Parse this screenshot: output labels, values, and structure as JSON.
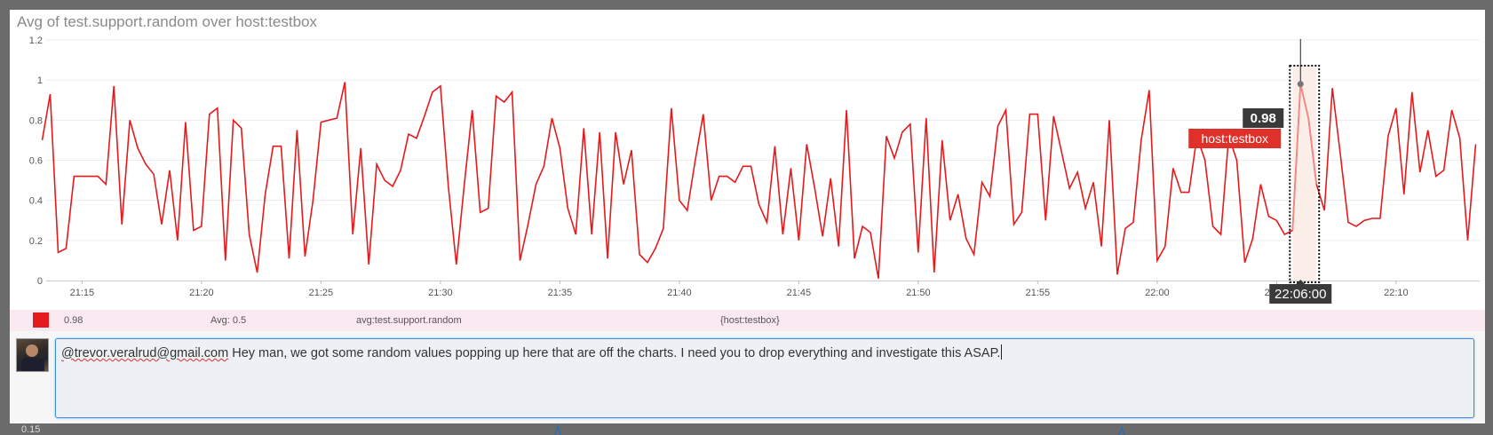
{
  "panel": {
    "title": "Avg of test.support.random over host:testbox"
  },
  "chart_data": {
    "type": "line",
    "title": "Avg of test.support.random over host:testbox",
    "xlabel": "",
    "ylabel": "",
    "ylim": [
      0,
      1.2
    ],
    "xlim": [
      "21:13:30",
      "22:13:30"
    ],
    "yticks": [
      {
        "value": 0,
        "label": "0"
      },
      {
        "value": 0.2,
        "label": "0.2"
      },
      {
        "value": 0.4,
        "label": "0.4"
      },
      {
        "value": 0.6,
        "label": "0.6"
      },
      {
        "value": 0.8,
        "label": "0.8"
      },
      {
        "value": 1,
        "label": "1"
      },
      {
        "value": 1.2,
        "label": "1.2"
      }
    ],
    "xticks": [
      "21:15",
      "21:20",
      "21:25",
      "21:30",
      "21:35",
      "21:40",
      "21:45",
      "21:50",
      "21:55",
      "22:00",
      "22:05",
      "22:10"
    ],
    "grid": true,
    "series": [
      {
        "name": "host:testbox",
        "color": "#e41a1c",
        "points": [
          [
            "21:13:20",
            0.7
          ],
          [
            "21:13:40",
            0.93
          ],
          [
            "21:14:00",
            0.14
          ],
          [
            "21:14:20",
            0.16
          ],
          [
            "21:14:40",
            0.52
          ],
          [
            "21:15:00",
            0.52
          ],
          [
            "21:15:20",
            0.52
          ],
          [
            "21:15:40",
            0.52
          ],
          [
            "21:16:00",
            0.48
          ],
          [
            "21:16:20",
            0.97
          ],
          [
            "21:16:40",
            0.28
          ],
          [
            "21:17:00",
            0.8
          ],
          [
            "21:17:20",
            0.66
          ],
          [
            "21:17:40",
            0.58
          ],
          [
            "21:18:00",
            0.53
          ],
          [
            "21:18:20",
            0.28
          ],
          [
            "21:18:40",
            0.55
          ],
          [
            "21:19:00",
            0.2
          ],
          [
            "21:19:20",
            0.79
          ],
          [
            "21:19:40",
            0.25
          ],
          [
            "21:20:00",
            0.27
          ],
          [
            "21:20:20",
            0.83
          ],
          [
            "21:20:40",
            0.86
          ],
          [
            "21:21:00",
            0.1
          ],
          [
            "21:21:20",
            0.8
          ],
          [
            "21:21:40",
            0.76
          ],
          [
            "21:22:00",
            0.23
          ],
          [
            "21:22:20",
            0.04
          ],
          [
            "21:22:40",
            0.43
          ],
          [
            "21:23:00",
            0.67
          ],
          [
            "21:23:20",
            0.67
          ],
          [
            "21:23:40",
            0.11
          ],
          [
            "21:24:00",
            0.75
          ],
          [
            "21:24:20",
            0.12
          ],
          [
            "21:24:40",
            0.4
          ],
          [
            "21:25:00",
            0.79
          ],
          [
            "21:25:20",
            0.8
          ],
          [
            "21:25:40",
            0.81
          ],
          [
            "21:26:00",
            0.99
          ],
          [
            "21:26:20",
            0.23
          ],
          [
            "21:26:40",
            0.66
          ],
          [
            "21:27:00",
            0.08
          ],
          [
            "21:27:20",
            0.58
          ],
          [
            "21:27:40",
            0.5
          ],
          [
            "21:28:00",
            0.47
          ],
          [
            "21:28:20",
            0.55
          ],
          [
            "21:28:40",
            0.73
          ],
          [
            "21:29:00",
            0.71
          ],
          [
            "21:29:20",
            0.82
          ],
          [
            "21:29:40",
            0.94
          ],
          [
            "21:30:00",
            0.97
          ],
          [
            "21:30:20",
            0.47
          ],
          [
            "21:30:40",
            0.08
          ],
          [
            "21:31:00",
            0.48
          ],
          [
            "21:31:20",
            0.85
          ],
          [
            "21:31:40",
            0.34
          ],
          [
            "21:32:00",
            0.36
          ],
          [
            "21:32:20",
            0.92
          ],
          [
            "21:32:40",
            0.89
          ],
          [
            "21:33:00",
            0.94
          ],
          [
            "21:33:20",
            0.1
          ],
          [
            "21:33:40",
            0.28
          ],
          [
            "21:34:00",
            0.48
          ],
          [
            "21:34:20",
            0.57
          ],
          [
            "21:34:40",
            0.81
          ],
          [
            "21:35:00",
            0.66
          ],
          [
            "21:35:20",
            0.36
          ],
          [
            "21:35:40",
            0.23
          ],
          [
            "21:36:00",
            0.76
          ],
          [
            "21:36:20",
            0.23
          ],
          [
            "21:36:40",
            0.74
          ],
          [
            "21:37:00",
            0.11
          ],
          [
            "21:37:20",
            0.74
          ],
          [
            "21:37:40",
            0.48
          ],
          [
            "21:38:00",
            0.65
          ],
          [
            "21:38:20",
            0.13
          ],
          [
            "21:38:40",
            0.09
          ],
          [
            "21:39:00",
            0.16
          ],
          [
            "21:39:20",
            0.26
          ],
          [
            "21:39:40",
            0.86
          ],
          [
            "21:40:00",
            0.4
          ],
          [
            "21:40:20",
            0.35
          ],
          [
            "21:40:40",
            0.6
          ],
          [
            "21:41:00",
            0.83
          ],
          [
            "21:41:20",
            0.4
          ],
          [
            "21:41:40",
            0.52
          ],
          [
            "21:42:00",
            0.52
          ],
          [
            "21:42:20",
            0.49
          ],
          [
            "21:42:40",
            0.57
          ],
          [
            "21:43:00",
            0.57
          ],
          [
            "21:43:20",
            0.38
          ],
          [
            "21:43:40",
            0.29
          ],
          [
            "21:44:00",
            0.67
          ],
          [
            "21:44:20",
            0.23
          ],
          [
            "21:44:40",
            0.56
          ],
          [
            "21:45:00",
            0.2
          ],
          [
            "21:45:20",
            0.68
          ],
          [
            "21:45:40",
            0.46
          ],
          [
            "21:46:00",
            0.22
          ],
          [
            "21:46:20",
            0.51
          ],
          [
            "21:46:40",
            0.17
          ],
          [
            "21:47:00",
            0.85
          ],
          [
            "21:47:20",
            0.11
          ],
          [
            "21:47:40",
            0.27
          ],
          [
            "21:48:00",
            0.24
          ],
          [
            "21:48:20",
            0.01
          ],
          [
            "21:48:40",
            0.72
          ],
          [
            "21:49:00",
            0.61
          ],
          [
            "21:49:20",
            0.74
          ],
          [
            "21:49:40",
            0.78
          ],
          [
            "21:50:00",
            0.14
          ],
          [
            "21:50:20",
            0.81
          ],
          [
            "21:50:40",
            0.04
          ],
          [
            "21:51:00",
            0.7
          ],
          [
            "21:51:20",
            0.3
          ],
          [
            "21:51:40",
            0.43
          ],
          [
            "21:52:00",
            0.21
          ],
          [
            "21:52:20",
            0.13
          ],
          [
            "21:52:40",
            0.49
          ],
          [
            "21:53:00",
            0.42
          ],
          [
            "21:53:20",
            0.77
          ],
          [
            "21:53:40",
            0.85
          ],
          [
            "21:54:00",
            0.28
          ],
          [
            "21:54:20",
            0.34
          ],
          [
            "21:54:40",
            0.83
          ],
          [
            "21:55:00",
            0.83
          ],
          [
            "21:55:20",
            0.3
          ],
          [
            "21:55:40",
            0.82
          ],
          [
            "21:56:00",
            0.64
          ],
          [
            "21:56:20",
            0.46
          ],
          [
            "21:56:40",
            0.54
          ],
          [
            "21:57:00",
            0.36
          ],
          [
            "21:57:20",
            0.49
          ],
          [
            "21:57:40",
            0.17
          ],
          [
            "21:58:00",
            0.8
          ],
          [
            "21:58:20",
            0.03
          ],
          [
            "21:58:40",
            0.26
          ],
          [
            "21:59:00",
            0.29
          ],
          [
            "21:59:20",
            0.7
          ],
          [
            "21:59:40",
            0.95
          ],
          [
            "22:00:00",
            0.1
          ],
          [
            "22:00:20",
            0.17
          ],
          [
            "22:00:40",
            0.56
          ],
          [
            "22:01:00",
            0.44
          ],
          [
            "22:01:20",
            0.44
          ],
          [
            "22:01:40",
            0.72
          ],
          [
            "22:02:00",
            0.6
          ],
          [
            "22:02:20",
            0.27
          ],
          [
            "22:02:40",
            0.23
          ],
          [
            "22:03:00",
            0.72
          ],
          [
            "22:03:20",
            0.6
          ],
          [
            "22:03:40",
            0.09
          ],
          [
            "22:04:00",
            0.21
          ],
          [
            "22:04:20",
            0.48
          ],
          [
            "22:04:40",
            0.32
          ],
          [
            "22:05:00",
            0.3
          ],
          [
            "22:05:20",
            0.23
          ],
          [
            "22:05:40",
            0.25
          ],
          [
            "22:06:00",
            0.98
          ],
          [
            "22:06:20",
            0.81
          ],
          [
            "22:06:40",
            0.48
          ],
          [
            "22:07:00",
            0.35
          ],
          [
            "22:07:20",
            0.96
          ],
          [
            "22:07:40",
            0.63
          ],
          [
            "22:08:00",
            0.29
          ],
          [
            "22:08:20",
            0.27
          ],
          [
            "22:08:40",
            0.3
          ],
          [
            "22:09:00",
            0.31
          ],
          [
            "22:09:20",
            0.31
          ],
          [
            "22:09:40",
            0.72
          ],
          [
            "22:10:00",
            0.86
          ],
          [
            "22:10:20",
            0.43
          ],
          [
            "22:10:40",
            0.94
          ],
          [
            "22:11:00",
            0.54
          ],
          [
            "22:11:20",
            0.75
          ],
          [
            "22:11:40",
            0.52
          ],
          [
            "22:12:00",
            0.55
          ],
          [
            "22:12:20",
            0.85
          ],
          [
            "22:12:40",
            0.71
          ],
          [
            "22:13:00",
            0.2
          ],
          [
            "22:13:20",
            0.68
          ]
        ]
      }
    ],
    "highlight": {
      "time": "22:06:00",
      "value": 0.98,
      "value_label": "0.98",
      "host_label": "host:testbox",
      "time_label": "22:06:00",
      "range": [
        "22:05:40",
        "22:06:40"
      ]
    }
  },
  "legend": {
    "swatch_color": "#e41a1c",
    "value": "0.98",
    "avg": "Avg: 0.5",
    "metric": "avg:test.support.random",
    "scope": "{host:testbox}"
  },
  "comment": {
    "mention": "@trevor.veralrud@gmail.com",
    "text": " Hey man, we got some random values popping up here that are off the charts. I need you to drop everything and investigate this ASAP."
  },
  "below_chart": {
    "tick_label": "0.15"
  }
}
